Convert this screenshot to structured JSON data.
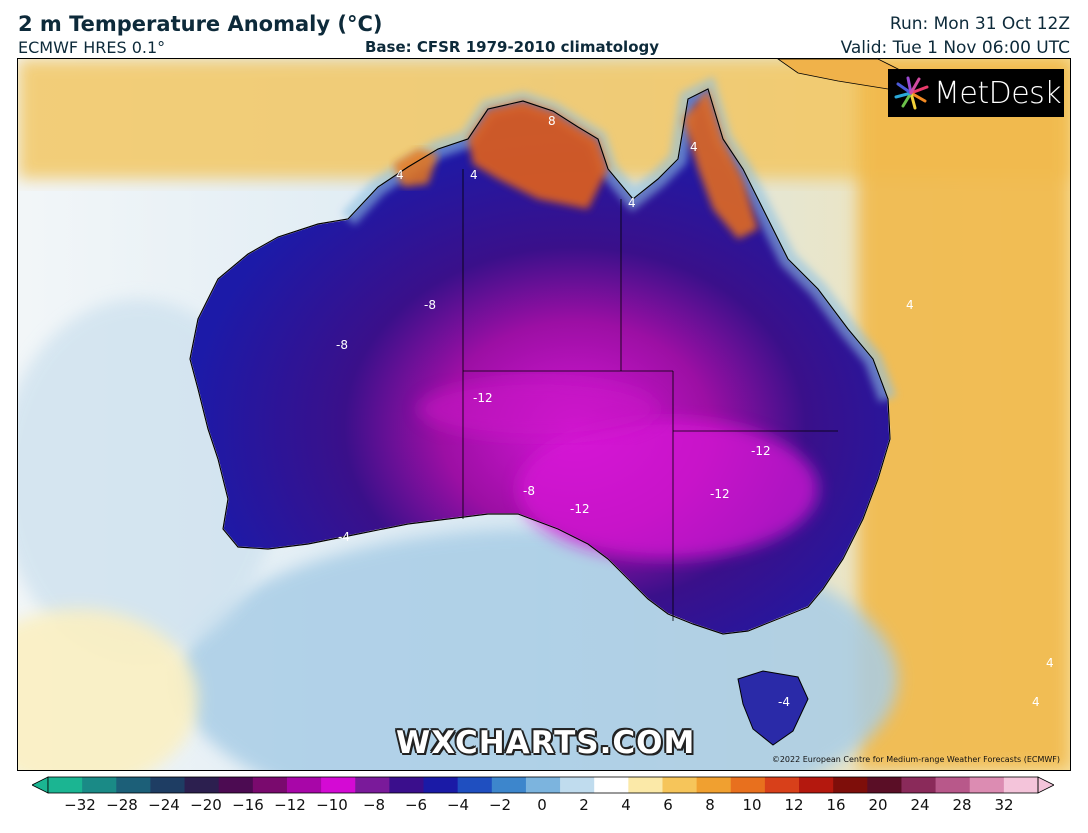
{
  "header": {
    "title": "2 m Temperature Anomaly (°C)",
    "model": "ECMWF HRES 0.1°",
    "base": "Base: CFSR 1979-2010 climatology",
    "run": "Run: Mon 31 Oct 12Z",
    "valid": "Valid: Tue 1 Nov 06:00 UTC"
  },
  "logo": {
    "text": "MetDesk"
  },
  "watermark": "WXCHARTS.COM",
  "copyright": "©2022 European Centre for Medium-range Weather Forecasts (ECMWF)",
  "colorbar": {
    "ticks": [
      "−32",
      "−28",
      "−24",
      "−20",
      "−16",
      "−12",
      "−10",
      "−8",
      "−6",
      "−4",
      "−2",
      "0",
      "2",
      "4",
      "6",
      "8",
      "10",
      "12",
      "16",
      "20",
      "24",
      "28",
      "32"
    ],
    "colors": [
      "#1bb592",
      "#1a8a86",
      "#1c5f78",
      "#1e3d63",
      "#2c1f4f",
      "#4c0b52",
      "#7a0a6e",
      "#a806a8",
      "#d40ad4",
      "#7a1a9a",
      "#3a0e8c",
      "#1a1aa6",
      "#1f4fc0",
      "#3d86cc",
      "#7cb4de",
      "#c0dcee",
      "#ffffff",
      "#fbe9a8",
      "#f6c55a",
      "#f0a030",
      "#e8701e",
      "#d8401a",
      "#b4180e",
      "#7e0e0a",
      "#5a0e26",
      "#8a2a5a",
      "#b8588a",
      "#dc8cb2",
      "#f4c4da"
    ]
  },
  "map_labels": [
    "8",
    "4",
    "4",
    "4",
    "4",
    "4",
    "-8",
    "-8",
    "-12",
    "-8",
    "-12",
    "-12",
    "-12",
    "-4",
    "-4",
    "4",
    "4"
  ]
}
